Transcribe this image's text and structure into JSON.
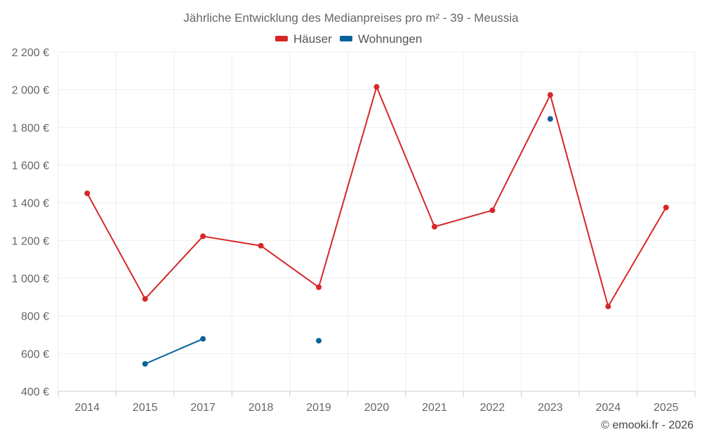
{
  "chart_data": {
    "type": "line",
    "title": "Jährliche Entwicklung des Medianpreises pro m² - 39 - Meussia",
    "categories": [
      "2014",
      "2015",
      "2017",
      "2018",
      "2019",
      "2020",
      "2021",
      "2022",
      "2023",
      "2024",
      "2025"
    ],
    "y_ticks": [
      "400 €",
      "600 €",
      "800 €",
      "1 000 €",
      "1 200 €",
      "1 400 €",
      "1 600 €",
      "1 800 €",
      "2 000 €",
      "2 200 €"
    ],
    "ylim": [
      400,
      2200
    ],
    "y_tick_values": [
      400,
      600,
      800,
      1000,
      1200,
      1400,
      1600,
      1800,
      2000,
      2200
    ],
    "legend_position": "top-center",
    "series": [
      {
        "name": "Häuser",
        "color": "#d62728",
        "values": [
          1450,
          890,
          1222,
          1172,
          952,
          2015,
          1273,
          1360,
          1972,
          850,
          1375
        ]
      },
      {
        "name": "Wohnungen",
        "color": "#08639c",
        "values": [
          null,
          545,
          678,
          null,
          668,
          null,
          null,
          null,
          1845,
          null,
          null
        ]
      }
    ],
    "credit": "© emooki.fr - 2026"
  }
}
